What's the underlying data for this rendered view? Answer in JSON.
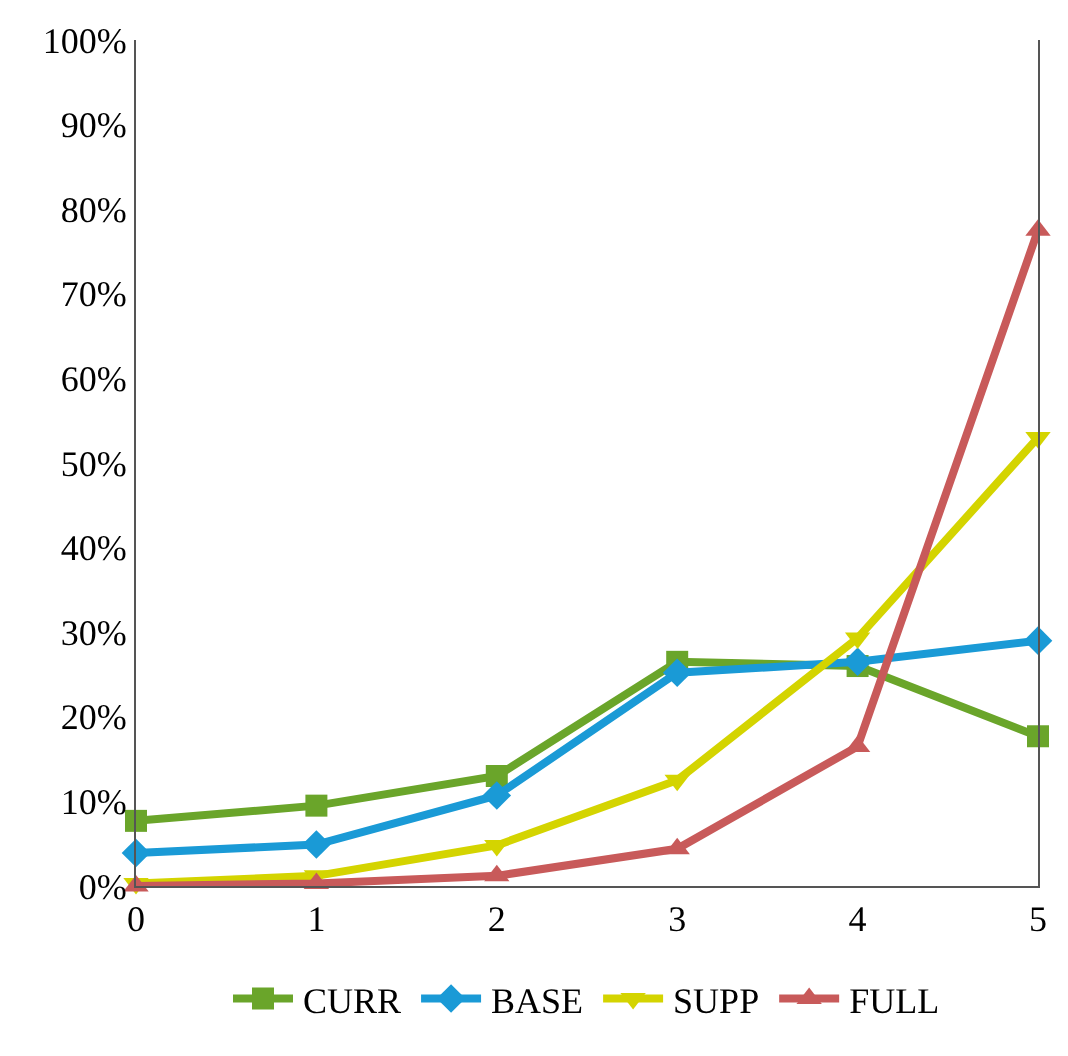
{
  "chart_data": {
    "type": "line",
    "x": [
      0,
      1,
      2,
      3,
      4,
      5
    ],
    "series": [
      {
        "name": "CURR",
        "color": "#6aa52a",
        "marker": "square",
        "values": [
          7.7,
          9.5,
          13,
          26.5,
          26,
          17.7
        ]
      },
      {
        "name": "BASE",
        "color": "#1a9ad6",
        "marker": "diamond",
        "values": [
          3.9,
          4.9,
          10.7,
          25.2,
          26.5,
          29
        ]
      },
      {
        "name": "SUPP",
        "color": "#d4d400",
        "marker": "triangle-down",
        "values": [
          0.3,
          1.2,
          4.8,
          12.5,
          29.3,
          53
        ]
      },
      {
        "name": "FULL",
        "color": "#c85a5a",
        "marker": "triangle",
        "values": [
          0,
          0.3,
          1.2,
          4.4,
          16.5,
          77.5
        ]
      }
    ],
    "xlim": [
      0,
      5
    ],
    "xticks": [
      0,
      1,
      2,
      3,
      4,
      5
    ],
    "ylim": [
      0,
      100
    ],
    "yticks": [
      {
        "value": 0,
        "label": "0%"
      },
      {
        "value": 10,
        "label": "10%"
      },
      {
        "value": 20,
        "label": "20%"
      },
      {
        "value": 30,
        "label": "30%"
      },
      {
        "value": 40,
        "label": "40%"
      },
      {
        "value": 50,
        "label": "50%"
      },
      {
        "value": 60,
        "label": "60%"
      },
      {
        "value": 70,
        "label": "70%"
      },
      {
        "value": 80,
        "label": "80%"
      },
      {
        "value": 90,
        "label": "90%"
      },
      {
        "value": 100,
        "label": "100%"
      }
    ],
    "grid": false,
    "legend": "bottom",
    "line_style": "solid"
  }
}
